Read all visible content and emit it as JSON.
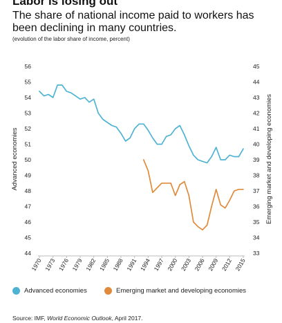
{
  "header": {
    "title": "Labor is losing out",
    "subtitle": "The share of national income paid to workers has been declining in many countries.",
    "note": "(evolution of the labor share of income, percent)"
  },
  "colors": {
    "advanced": "#4eb3d3",
    "emerging": "#e08a3c",
    "axis": "#bbbbbb",
    "text": "#222222"
  },
  "chart_data": {
    "type": "line",
    "xlabel": "",
    "ylabel_left": "Advanced economies",
    "ylabel_right": "Emerging market and developing economies",
    "x_ticks": [
      1970,
      1973,
      1976,
      1979,
      1982,
      1985,
      1988,
      1991,
      1994,
      1997,
      2000,
      2003,
      2006,
      2009,
      2012,
      2015
    ],
    "xlim": [
      1970,
      2015
    ],
    "y_left_ticks": [
      44,
      45,
      46,
      47,
      48,
      49,
      50,
      51,
      52,
      53,
      54,
      55,
      56
    ],
    "y_left_lim": [
      44,
      56
    ],
    "y_right_ticks": [
      33,
      34,
      35,
      36,
      37,
      38,
      39,
      40,
      41,
      42,
      43,
      44,
      45
    ],
    "y_right_lim": [
      33,
      45
    ],
    "grid": false,
    "legend_position": "bottom",
    "series": [
      {
        "name": "Advanced economies",
        "axis": "left",
        "color": "#4eb3d3",
        "x": [
          1970,
          1971,
          1972,
          1973,
          1974,
          1975,
          1976,
          1977,
          1978,
          1979,
          1980,
          1981,
          1982,
          1983,
          1984,
          1985,
          1986,
          1987,
          1988,
          1989,
          1990,
          1991,
          1992,
          1993,
          1994,
          1995,
          1996,
          1997,
          1998,
          1999,
          2000,
          2001,
          2002,
          2003,
          2004,
          2005,
          2006,
          2007,
          2008,
          2009,
          2010,
          2011,
          2012,
          2013,
          2014,
          2015
        ],
        "values": [
          54.4,
          54.1,
          54.2,
          54.0,
          54.8,
          54.8,
          54.4,
          54.3,
          54.1,
          53.9,
          54.0,
          53.7,
          53.9,
          53.0,
          52.6,
          52.4,
          52.2,
          52.1,
          51.7,
          51.2,
          51.4,
          52.0,
          52.3,
          52.3,
          51.9,
          51.4,
          51.0,
          51.0,
          51.5,
          51.6,
          52.0,
          52.2,
          51.6,
          50.9,
          50.3,
          50.0,
          49.9,
          49.8,
          50.2,
          50.8,
          50.0,
          50.0,
          50.3,
          50.2,
          50.2,
          50.7
        ]
      },
      {
        "name": "Emerging market and developing economies",
        "axis": "right",
        "color": "#e08a3c",
        "x": [
          1993,
          1994,
          1995,
          1996,
          1997,
          1998,
          1999,
          2000,
          2001,
          2002,
          2003,
          2004,
          2005,
          2006,
          2007,
          2008,
          2009,
          2010,
          2011,
          2012,
          2013,
          2014,
          2015
        ],
        "values": [
          39.0,
          38.3,
          36.9,
          37.2,
          37.5,
          37.5,
          37.5,
          36.7,
          37.4,
          37.6,
          36.7,
          35.0,
          34.7,
          34.5,
          34.8,
          36.0,
          37.1,
          36.1,
          35.9,
          36.4,
          37.0,
          37.1,
          37.1
        ]
      }
    ]
  },
  "legend": {
    "advanced_label": "Advanced economies",
    "emerging_label": "Emerging market and developing economies"
  },
  "source": {
    "prefix": "Source: IMF, ",
    "publication": "World Economic Outlook",
    "suffix": ", April 2017."
  }
}
